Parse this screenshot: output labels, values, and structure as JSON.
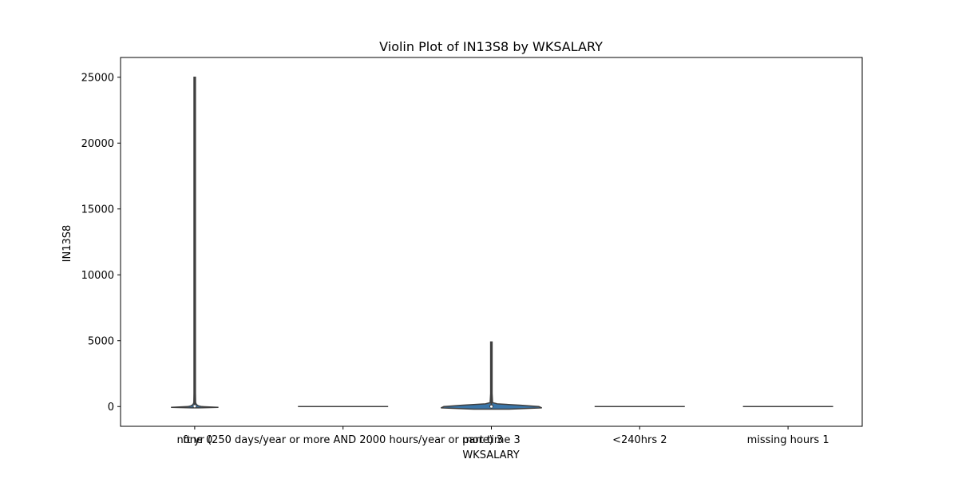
{
  "chart_data": {
    "type": "violin",
    "title": "Violin Plot of IN13S8 by WKSALARY",
    "xlabel": "WKSALARY",
    "ylabel": "IN13S8",
    "ylim": [
      -1500,
      26500
    ],
    "yticks": [
      0,
      5000,
      10000,
      15000,
      20000,
      25000
    ],
    "ytick_labels": [
      "0",
      "5000",
      "10000",
      "15000",
      "20000",
      "25000"
    ],
    "grid": false,
    "legend": "none",
    "colors": {
      "violin_fill": "#3a75a8",
      "violin_edge": "#3f3f3f",
      "frame": "#000000"
    },
    "categories": [
      "none 0",
      "ft yr (250 days/year or more AND 2000 hours/year or more) 3",
      "part time 3",
      "<240hrs 2",
      "missing hours 1"
    ],
    "tick_label_overlap_note_free": true,
    "violins": [
      {
        "category": "none 0",
        "min": -100,
        "max": 25000,
        "q1": 0,
        "median": 20,
        "q3": 60,
        "profile": [
          [
            -100,
            0.05
          ],
          [
            -60,
            0.4
          ],
          [
            0,
            0.12
          ],
          [
            60,
            0.06
          ],
          [
            150,
            0.03
          ],
          [
            300,
            0.015
          ],
          [
            1000,
            0.012
          ],
          [
            25000,
            0.012
          ]
        ]
      },
      {
        "category": "ft yr (250 days/year or more AND 2000 hours/year or more) 3",
        "min": 0,
        "max": 0,
        "q1": 0,
        "median": 0,
        "q3": 0,
        "profile": [
          [
            0,
            0.8
          ]
        ]
      },
      {
        "category": "part time 3",
        "min": -150,
        "max": 4900,
        "q1": -60,
        "median": 0,
        "q3": 100,
        "profile": [
          [
            -200,
            0.3
          ],
          [
            -100,
            0.85
          ],
          [
            0,
            0.8
          ],
          [
            100,
            0.5
          ],
          [
            200,
            0.1
          ],
          [
            300,
            0.02
          ],
          [
            1000,
            0.012
          ],
          [
            4900,
            0.012
          ]
        ]
      },
      {
        "category": "<240hrs 2",
        "min": 0,
        "max": 0,
        "q1": 0,
        "median": 0,
        "q3": 0,
        "profile": [
          [
            0,
            0.8
          ]
        ]
      },
      {
        "category": "missing hours 1",
        "min": 0,
        "max": 0,
        "q1": 0,
        "median": 0,
        "q3": 0,
        "profile": [
          [
            0,
            0.8
          ]
        ]
      }
    ]
  }
}
